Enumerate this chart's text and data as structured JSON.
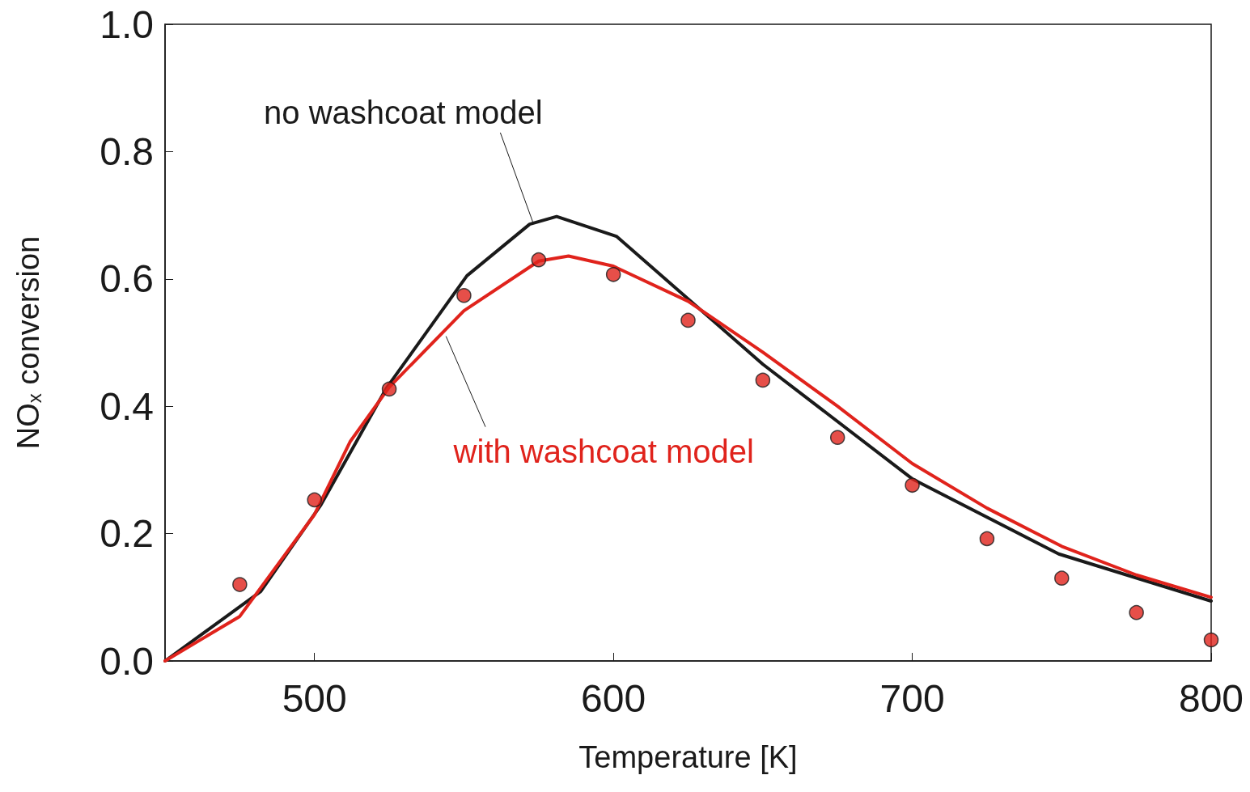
{
  "chart_data": {
    "type": "line",
    "xlabel": "Temperature [K]",
    "ylabel": "NO$_{x}$ conversion",
    "xlim": [
      450,
      800
    ],
    "xticks": [
      500,
      600,
      700,
      800
    ],
    "ylim": [
      0,
      1
    ],
    "yticks": [
      {
        "value": 0,
        "label": "0.0"
      },
      {
        "value": 0.2,
        "label": "0.2"
      },
      {
        "value": 0.4,
        "label": "0.4"
      },
      {
        "value": 0.6,
        "label": "0.6"
      },
      {
        "value": 0.8,
        "label": "0.8"
      },
      {
        "value": 1,
        "label": "1.0"
      }
    ],
    "grid": false,
    "marker": "none",
    "line_style": "solid",
    "series": [
      {
        "color": "#1a1a1a",
        "x": [
          450,
          482,
          502,
          524,
          551,
          572,
          581,
          601,
          650,
          700,
          749,
          800
        ],
        "values": [
          0,
          0.109,
          0.244,
          0.428,
          0.605,
          0.686,
          0.698,
          0.667,
          0.466,
          0.286,
          0.168,
          0.094
        ]
      },
      {
        "color": "#e0231c",
        "x": [
          450,
          475,
          500,
          512,
          525,
          550,
          575,
          585,
          600,
          625,
          650,
          675,
          700,
          725,
          750,
          775,
          800
        ],
        "values": [
          0,
          0.07,
          0.23,
          0.345,
          0.43,
          0.55,
          0.628,
          0.636,
          0.62,
          0.565,
          0.485,
          0.4,
          0.31,
          0.24,
          0.18,
          0.135,
          0.1
        ]
      },
      {
        "type": "scatter",
        "marker": "circle",
        "color": "#e0231c",
        "x": [
          475,
          500,
          525,
          550,
          575,
          600,
          625,
          650,
          675,
          700,
          725,
          750,
          775,
          800
        ],
        "values": [
          0.12,
          0.253,
          0.427,
          0.574,
          0.63,
          0.607,
          0.535,
          0.441,
          0.351,
          0.276,
          0.192,
          0.13,
          0.076,
          0.033
        ]
      }
    ],
    "annotations": [
      {
        "text": "no washcoat model",
        "x": 573,
        "y": 0.69
      },
      {
        "text": "with washcoat model",
        "x": 544,
        "y": 0.51
      }
    ]
  }
}
